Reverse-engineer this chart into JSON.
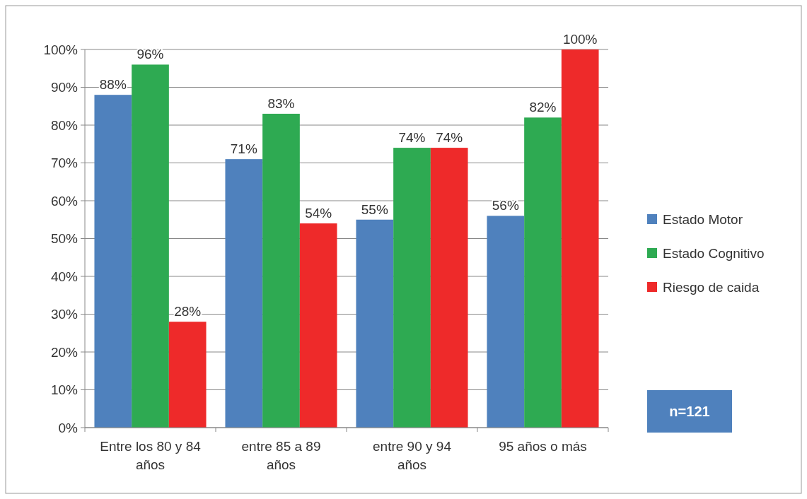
{
  "chart_data": {
    "type": "bar",
    "categories": [
      "Entre los 80 y 84 años",
      "entre 85 a 89 años",
      "entre 90 y 94 años",
      "95 años o más"
    ],
    "series": [
      {
        "name": "Estado Motor",
        "color": "#4f81bd",
        "values": [
          88,
          71,
          55,
          56
        ],
        "value_labels": [
          "88%",
          "71%",
          "55%",
          "56%"
        ]
      },
      {
        "name": "Estado Cognitivo",
        "color": "#2eaa52",
        "values": [
          96,
          83,
          74,
          82
        ],
        "value_labels": [
          "96%",
          "83%",
          "74%",
          "82%"
        ]
      },
      {
        "name": "Riesgo de caida",
        "color": "#ee2a2a",
        "values": [
          28,
          54,
          74,
          100
        ],
        "value_labels": [
          "28%",
          "54%",
          "74%",
          "100%"
        ]
      }
    ],
    "ylim": [
      0,
      100
    ],
    "yticks": [
      {
        "value": 0,
        "label": "0%"
      },
      {
        "value": 10,
        "label": "10%"
      },
      {
        "value": 20,
        "label": "20%"
      },
      {
        "value": 30,
        "label": "30%"
      },
      {
        "value": 40,
        "label": "40%"
      },
      {
        "value": 50,
        "label": "50%"
      },
      {
        "value": 60,
        "label": "60%"
      },
      {
        "value": 70,
        "label": "70%"
      },
      {
        "value": 80,
        "label": "80%"
      },
      {
        "value": 90,
        "label": "90%"
      },
      {
        "value": 100,
        "label": "100%"
      }
    ],
    "grid": "y",
    "legend": "right",
    "annotations": [
      "n=121"
    ]
  }
}
